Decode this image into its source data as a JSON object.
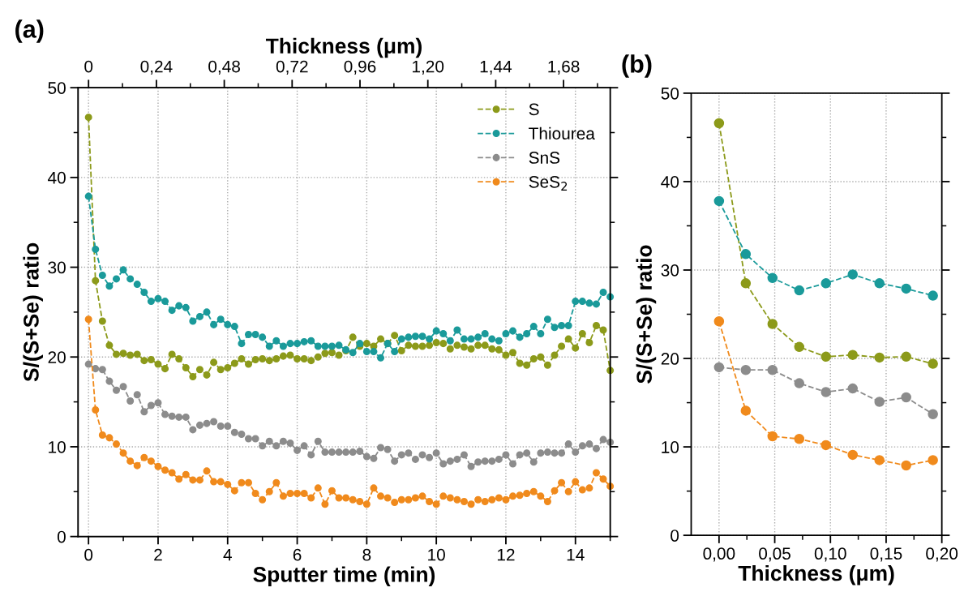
{
  "chart_data": [
    {
      "type": "line",
      "title": "(a)",
      "xlabel": "Sputter time (min)",
      "ylabel": "S/(S+Se) ratio",
      "x2label": "Thickness (μm)",
      "x": [
        0,
        0.2,
        0.4,
        0.6,
        0.8,
        1.0,
        1.2,
        1.4,
        1.6,
        1.8,
        2.0,
        2.2,
        2.4,
        2.6,
        2.8,
        3.0,
        3.2,
        3.4,
        3.6,
        3.8,
        4.0,
        4.2,
        4.4,
        4.6,
        4.8,
        5.0,
        5.2,
        5.4,
        5.6,
        5.8,
        6.0,
        6.2,
        6.4,
        6.6,
        6.8,
        7.0,
        7.2,
        7.4,
        7.6,
        7.8,
        8.0,
        8.2,
        8.4,
        8.6,
        8.8,
        9.0,
        9.2,
        9.4,
        9.6,
        9.8,
        10.0,
        10.2,
        10.4,
        10.6,
        10.8,
        11.0,
        11.2,
        11.4,
        11.6,
        11.8,
        12.0,
        12.2,
        12.4,
        12.6,
        12.8,
        13.0,
        13.2,
        13.4,
        13.6,
        13.8,
        14.0,
        14.2,
        14.4,
        14.6,
        14.8,
        15.0
      ],
      "series": [
        {
          "name": "S",
          "color": "#8c9a1a",
          "values": [
            46.7,
            28.5,
            24.0,
            21.3,
            20.3,
            20.4,
            20.2,
            20.3,
            19.6,
            19.7,
            19.2,
            18.7,
            20.3,
            19.8,
            18.8,
            17.8,
            18.6,
            18.0,
            19.4,
            18.6,
            18.8,
            19.3,
            19.8,
            19.2,
            19.7,
            19.8,
            19.6,
            19.8,
            20.1,
            20.2,
            19.8,
            19.8,
            19.6,
            20.0,
            20.4,
            20.5,
            20.2,
            20.7,
            22.2,
            21.2,
            21.5,
            21.2,
            22.0,
            21.5,
            22.4,
            20.7,
            21.3,
            21.2,
            21.2,
            21.3,
            21.6,
            21.5,
            20.9,
            21.3,
            21.1,
            20.9,
            21.3,
            21.3,
            20.9,
            20.8,
            20.2,
            20.5,
            19.3,
            19.1,
            19.8,
            20.0,
            19.1,
            20.2,
            21.2,
            22.0,
            21.0,
            22.6,
            21.6,
            23.5,
            23.0,
            18.5
          ]
        },
        {
          "name": "Thiourea",
          "color": "#1a9a9a",
          "values": [
            37.9,
            32.0,
            29.1,
            27.9,
            28.7,
            29.7,
            28.7,
            28.1,
            27.2,
            26.2,
            26.5,
            26.2,
            25.2,
            25.7,
            25.5,
            24.0,
            24.5,
            25.0,
            23.6,
            24.2,
            23.6,
            23.4,
            21.5,
            22.5,
            22.5,
            22.2,
            21.2,
            21.8,
            21.2,
            21.5,
            21.5,
            21.7,
            21.8,
            21.2,
            21.2,
            21.2,
            21.3,
            20.8,
            20.5,
            21.5,
            20.6,
            20.6,
            19.9,
            21.5,
            20.6,
            22.0,
            22.2,
            22.3,
            22.3,
            22.0,
            22.9,
            22.6,
            21.8,
            23.0,
            22.0,
            22.0,
            22.2,
            22.6,
            22.0,
            21.8,
            22.6,
            22.9,
            22.2,
            22.6,
            23.4,
            22.6,
            24.2,
            23.3,
            23.5,
            23.5,
            26.2,
            26.2,
            26.0,
            25.9,
            27.2,
            26.7
          ]
        },
        {
          "name": "SnS",
          "color": "#8c8c8c",
          "values": [
            19.2,
            18.7,
            18.6,
            17.3,
            16.3,
            16.7,
            15.1,
            15.8,
            13.9,
            14.6,
            14.9,
            13.6,
            13.4,
            13.3,
            13.3,
            11.9,
            12.4,
            12.6,
            12.8,
            12.3,
            12.3,
            11.6,
            11.4,
            10.9,
            10.9,
            10.1,
            10.6,
            10.1,
            10.6,
            10.4,
            9.6,
            10.1,
            9.1,
            10.6,
            9.4,
            9.4,
            9.4,
            9.4,
            9.4,
            9.5,
            8.9,
            8.7,
            9.9,
            9.7,
            8.4,
            9.1,
            9.3,
            8.6,
            9.1,
            8.8,
            9.3,
            8.1,
            8.4,
            8.6,
            9.1,
            7.8,
            8.3,
            8.4,
            8.4,
            8.6,
            9.1,
            8.1,
            9.1,
            9.3,
            8.3,
            9.3,
            9.4,
            9.3,
            9.3,
            10.3,
            9.4,
            10.1,
            10.3,
            9.8,
            10.8,
            10.5
          ]
        },
        {
          "name": "SeS$_{2}$",
          "color": "#f08a1c",
          "values": [
            24.2,
            14.1,
            11.3,
            11.0,
            10.3,
            9.3,
            8.4,
            7.9,
            8.8,
            8.4,
            7.8,
            7.4,
            7.1,
            6.4,
            6.9,
            6.3,
            6.3,
            7.3,
            6.1,
            6.1,
            5.8,
            5.1,
            6.0,
            6.0,
            4.8,
            4.1,
            5.0,
            6.0,
            4.5,
            4.8,
            4.8,
            4.8,
            4.3,
            5.4,
            3.6,
            5.1,
            4.3,
            4.3,
            4.1,
            3.9,
            3.6,
            5.4,
            4.5,
            4.3,
            3.8,
            4.1,
            4.1,
            4.3,
            4.5,
            3.9,
            3.6,
            4.5,
            4.3,
            4.1,
            3.9,
            3.6,
            4.1,
            3.9,
            4.1,
            4.3,
            4.1,
            4.5,
            4.6,
            4.8,
            5.0,
            4.5,
            3.9,
            5.1,
            6.0,
            5.0,
            6.1,
            5.2,
            5.4,
            7.1,
            6.4,
            5.6
          ]
        }
      ],
      "xlim": [
        -0.3,
        15
      ],
      "xticks": [
        0,
        {
          "value": 1,
          "label": null
        },
        2,
        {
          "value": 3,
          "label": null
        },
        4,
        {
          "value": 5,
          "label": null
        },
        6,
        {
          "value": 7,
          "label": null
        },
        8,
        {
          "value": 9,
          "label": null
        },
        10,
        {
          "value": 11,
          "label": null
        },
        12,
        {
          "value": 13,
          "label": null
        },
        14,
        {
          "value": 15,
          "label": null
        }
      ],
      "x2lim": [
        -0.037,
        1.845
      ],
      "x2ticks": [
        0,
        {
          "value": 0.12,
          "label": null
        },
        {
          "value": 0.24,
          "label": "0,24"
        },
        {
          "value": 0.36,
          "label": null
        },
        {
          "value": 0.48,
          "label": "0,48"
        },
        {
          "value": 0.6,
          "label": null
        },
        {
          "value": 0.72,
          "label": "0,72"
        },
        {
          "value": 0.84,
          "label": null
        },
        {
          "value": 0.96,
          "label": "0,96"
        },
        {
          "value": 1.08,
          "label": null
        },
        {
          "value": 1.2,
          "label": "1,20"
        },
        {
          "value": 1.32,
          "label": null
        },
        {
          "value": 1.44,
          "label": "1,44"
        },
        {
          "value": 1.56,
          "label": null
        },
        {
          "value": 1.68,
          "label": "1,68"
        },
        {
          "value": 1.8,
          "label": null
        }
      ],
      "ylim": [
        0,
        50
      ],
      "yticks": [
        0,
        {
          "value": 5,
          "label": null
        },
        10,
        {
          "value": 15,
          "label": null
        },
        20,
        {
          "value": 25,
          "label": null
        },
        30,
        {
          "value": 35,
          "label": null
        },
        40,
        {
          "value": 45,
          "label": null
        },
        50
      ],
      "grid": true,
      "legend": "top right",
      "marker": "circle",
      "line_style": "dashed"
    },
    {
      "type": "line",
      "title": "(b)",
      "xlabel": "Thickness (μm)",
      "ylabel": "S/(S+Se) ratio",
      "x": [
        0,
        0.024,
        0.048,
        0.072,
        0.096,
        0.12,
        0.144,
        0.168,
        0.192
      ],
      "series": [
        {
          "color": "#8c9a1a",
          "values": [
            46.6,
            28.5,
            23.9,
            21.3,
            20.2,
            20.4,
            20.1,
            20.2,
            19.4
          ]
        },
        {
          "color": "#1a9a9a",
          "values": [
            37.8,
            31.8,
            29.1,
            27.7,
            28.5,
            29.5,
            28.5,
            27.9,
            27.1
          ]
        },
        {
          "color": "#8c8c8c",
          "values": [
            19.0,
            18.7,
            18.7,
            17.2,
            16.2,
            16.6,
            15.1,
            15.6,
            13.7
          ]
        },
        {
          "color": "#f08a1c",
          "values": [
            24.2,
            14.1,
            11.2,
            10.9,
            10.2,
            9.1,
            8.5,
            7.9,
            8.5
          ]
        }
      ],
      "xlim": [
        -0.025,
        0.2
      ],
      "xticks": [
        {
          "value": 0,
          "label": "0,00"
        },
        {
          "value": 0.025,
          "label": null
        },
        {
          "value": 0.05,
          "label": "0,05"
        },
        {
          "value": 0.075,
          "label": null
        },
        {
          "value": 0.1,
          "label": "0,10"
        },
        {
          "value": 0.125,
          "label": null
        },
        {
          "value": 0.15,
          "label": "0,15"
        },
        {
          "value": 0.175,
          "label": null
        },
        {
          "value": 0.2,
          "label": "0,20"
        }
      ],
      "ylim": [
        0,
        50
      ],
      "yticks": [
        0,
        {
          "value": 5,
          "label": null
        },
        10,
        {
          "value": 15,
          "label": null
        },
        20,
        {
          "value": 25,
          "label": null
        },
        30,
        {
          "value": 35,
          "label": null
        },
        40,
        {
          "value": 45,
          "label": null
        },
        50
      ],
      "grid": true,
      "marker": "circle",
      "line_style": "dashed"
    }
  ]
}
